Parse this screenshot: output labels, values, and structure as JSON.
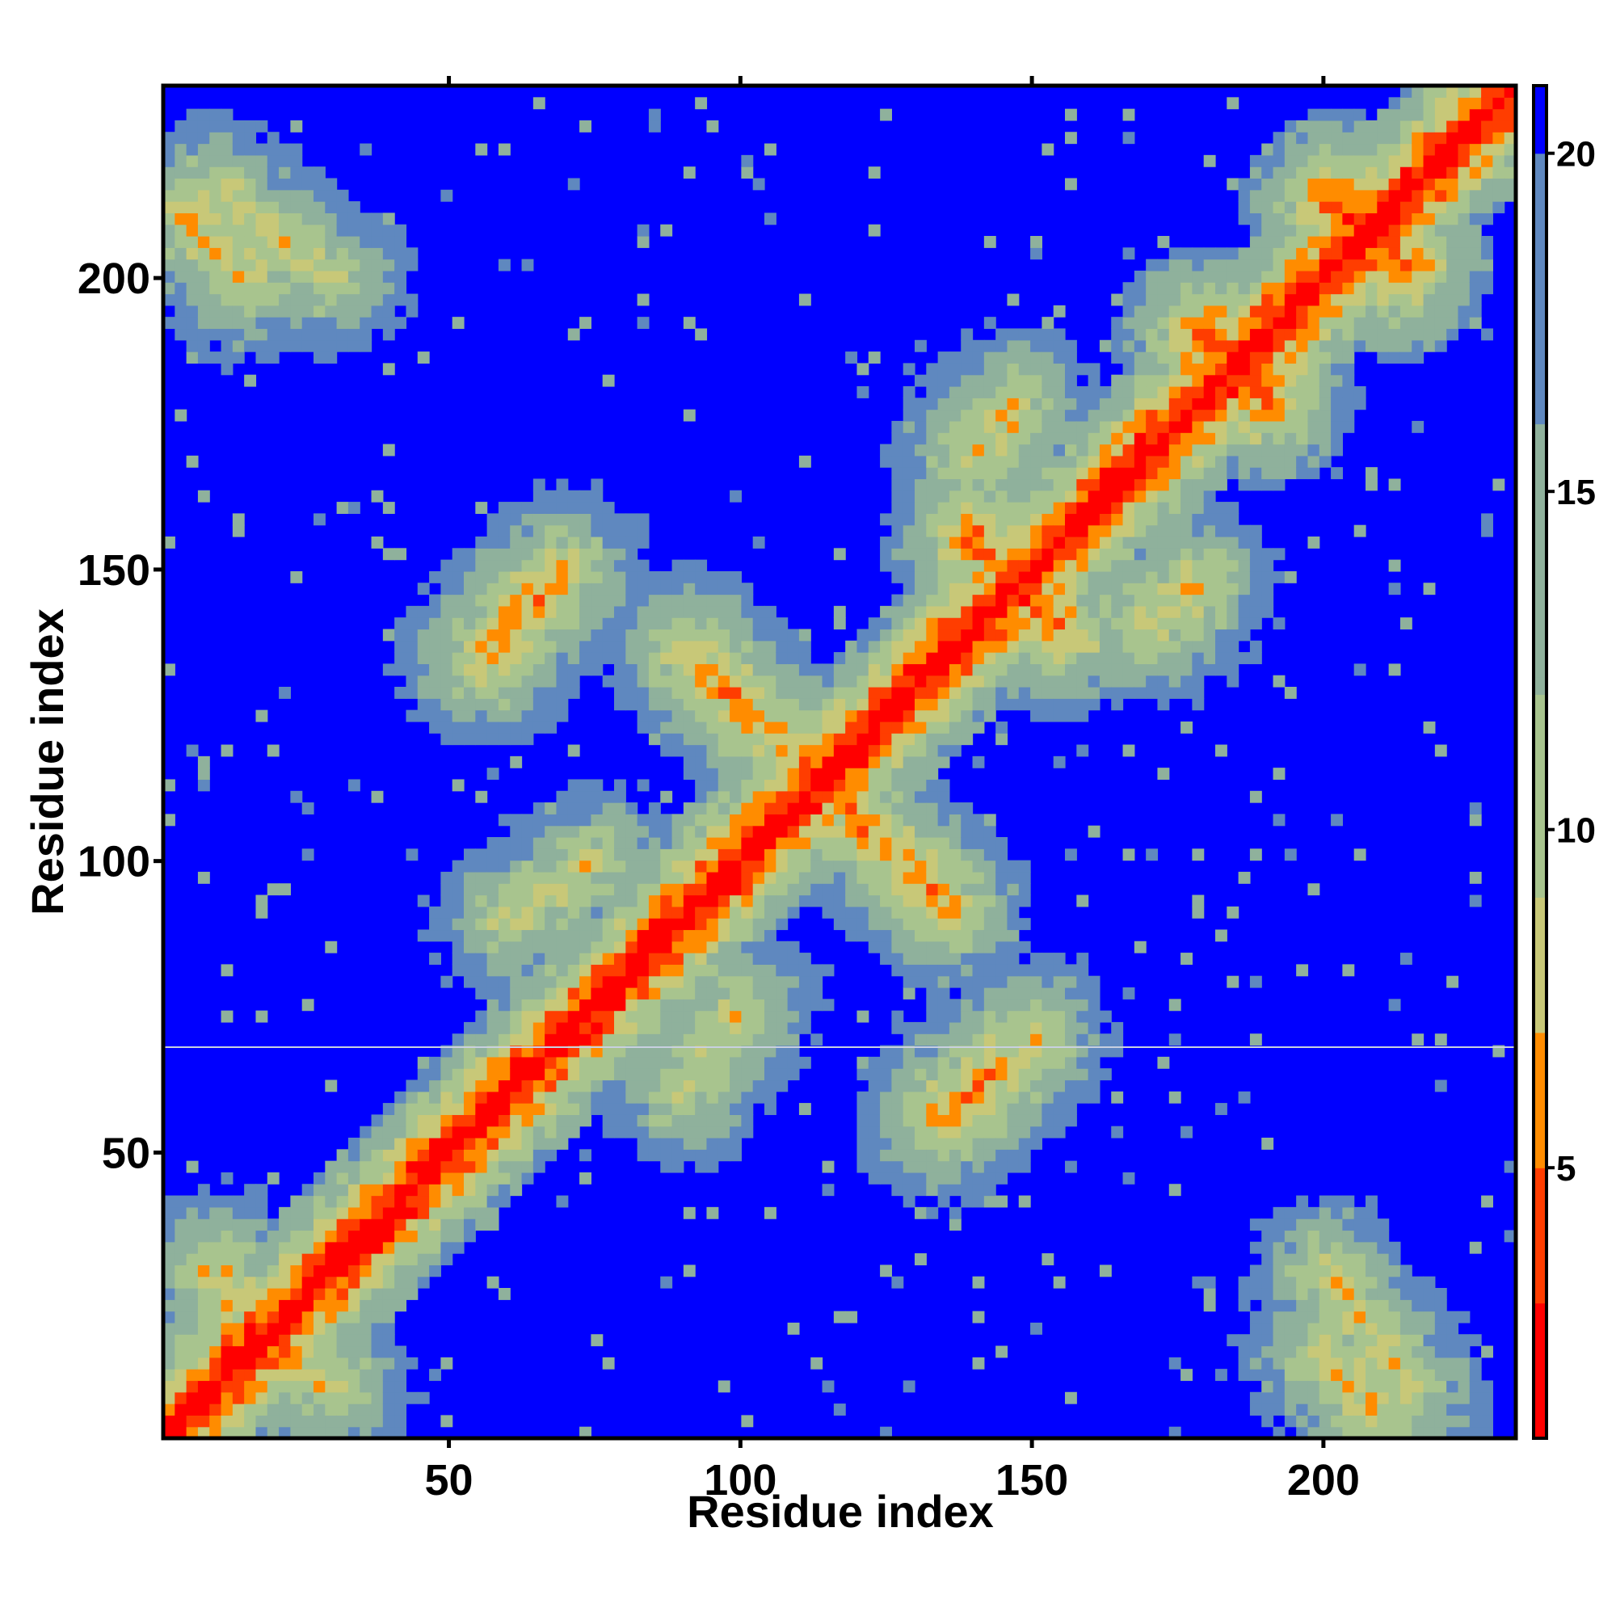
{
  "chart_data": {
    "type": "heatmap",
    "title": "",
    "xlabel": "Residue index",
    "ylabel": "Residue index",
    "xlim": [
      1,
      233
    ],
    "ylim": [
      1,
      233
    ],
    "x_ticks": [
      50,
      100,
      150,
      200
    ],
    "y_ticks": [
      50,
      100,
      150,
      200
    ],
    "x_tick_labels": [
      "50",
      "100",
      "150",
      "200"
    ],
    "y_tick_labels": [
      "50",
      "100",
      "150",
      "200"
    ],
    "colorbar": {
      "range": [
        1,
        21
      ],
      "ticks": [
        5,
        10,
        15,
        20
      ],
      "tick_labels": [
        "5",
        "10",
        "15",
        "20"
      ],
      "colors": [
        "#ff0000",
        "#ff7f00",
        "#a8c890",
        "#5b82c0",
        "#0000ff"
      ]
    },
    "description_of_values": "symmetric residue-residue distance map; diagonal ~0-4 (red), off-diagonal contacts 5-12 (orange/green), background >20 (blue)",
    "contact_features": [
      {
        "x": [
          1,
          233
        ],
        "y": [
          1,
          233
        ],
        "value": 1
      },
      {
        "x": [
          92,
          135
        ],
        "y": [
          135,
          92
        ],
        "value": 6
      },
      {
        "x": [
          180,
          190
        ],
        "y": [
          190,
          180
        ],
        "value": 4
      },
      {
        "x": [
          202,
          213
        ],
        "y": [
          213,
          202
        ],
        "value": 4
      },
      {
        "x": [
          140,
          155
        ],
        "y": [
          155,
          140
        ],
        "value": 5
      },
      {
        "x": [
          55,
          70
        ],
        "y": [
          135,
          150
        ],
        "value": 7
      },
      {
        "x": [
          135,
          145
        ],
        "y": [
          57,
          65
        ],
        "value": 6
      },
      {
        "x": [
          170,
          178
        ],
        "y": [
          140,
          147
        ],
        "value": 7
      },
      {
        "x": [
          10,
          30
        ],
        "y": [
          215,
          200
        ],
        "value": 8
      },
      {
        "x": [
          60,
          75
        ],
        "y": [
          90,
          100
        ],
        "value": 8
      },
      {
        "x": [
          200,
          210
        ],
        "y": [
          15,
          5
        ],
        "value": 7
      },
      {
        "x": [
          15,
          30
        ],
        "y": [
          20,
          10
        ],
        "value": 7
      }
    ]
  }
}
